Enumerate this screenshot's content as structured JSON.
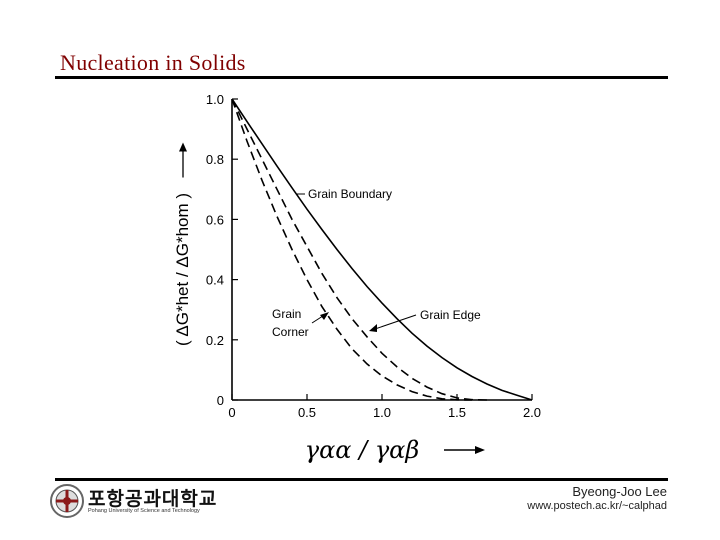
{
  "slide": {
    "title": "Nucleation in Solids",
    "author": "Byeong-Joo Lee",
    "website": "www.postech.ac.kr/~calphad",
    "logo_korean": "포항공과대학교",
    "logo_english": "Pohang University of Science and Technology"
  },
  "colors": {
    "title": "#800000",
    "rule": "#000000",
    "curve": "#000000"
  },
  "chart_data": {
    "type": "line",
    "title": "",
    "xlabel": "γαα / γαβ",
    "ylabel": "( ΔG*het / ΔG*hom )",
    "xlim": [
      0,
      2.0
    ],
    "ylim": [
      0,
      1.0
    ],
    "xticks": [
      "0",
      "0.5",
      "1.0",
      "1.5",
      "2.0"
    ],
    "yticks": [
      "0",
      "0.2",
      "0.4",
      "0.6",
      "0.8",
      "1.0"
    ],
    "grid": false,
    "series": [
      {
        "name": "Grain Boundary",
        "style": "solid",
        "x": [
          0,
          0.1,
          0.2,
          0.3,
          0.4,
          0.5,
          0.6,
          0.7,
          0.8,
          0.9,
          1.0,
          1.1,
          1.2,
          1.3,
          1.4,
          1.5,
          1.6,
          1.7,
          1.8,
          1.9,
          2.0
        ],
        "y": [
          1.0,
          0.925,
          0.851,
          0.777,
          0.705,
          0.634,
          0.566,
          0.5,
          0.437,
          0.377,
          0.322,
          0.27,
          0.222,
          0.179,
          0.141,
          0.107,
          0.078,
          0.053,
          0.032,
          0.016,
          0.0
        ]
      },
      {
        "name": "Grain Edge",
        "style": "dashed",
        "x": [
          0,
          0.1,
          0.2,
          0.3,
          0.4,
          0.5,
          0.6,
          0.7,
          0.8,
          0.9,
          1.0,
          1.1,
          1.2,
          1.3,
          1.4,
          1.5,
          1.6,
          1.7
        ],
        "y": [
          1.0,
          0.9,
          0.8,
          0.7,
          0.6,
          0.51,
          0.42,
          0.34,
          0.27,
          0.21,
          0.155,
          0.11,
          0.072,
          0.043,
          0.021,
          0.007,
          0.001,
          0.0
        ]
      },
      {
        "name": "Grain Corner",
        "style": "dashed",
        "x": [
          0,
          0.1,
          0.2,
          0.3,
          0.4,
          0.5,
          0.6,
          0.7,
          0.8,
          0.9,
          1.0,
          1.1,
          1.2,
          1.3,
          1.4,
          1.5,
          1.6
        ],
        "y": [
          1.0,
          0.86,
          0.73,
          0.61,
          0.5,
          0.4,
          0.31,
          0.235,
          0.17,
          0.12,
          0.08,
          0.05,
          0.028,
          0.013,
          0.004,
          0.0005,
          0.0
        ]
      }
    ],
    "annotations": [
      {
        "text": "Grain Boundary",
        "series": "Grain Boundary"
      },
      {
        "text": "Grain Edge",
        "series": "Grain Edge"
      },
      {
        "text": "Grain Corner",
        "series": "Grain Corner"
      }
    ]
  }
}
